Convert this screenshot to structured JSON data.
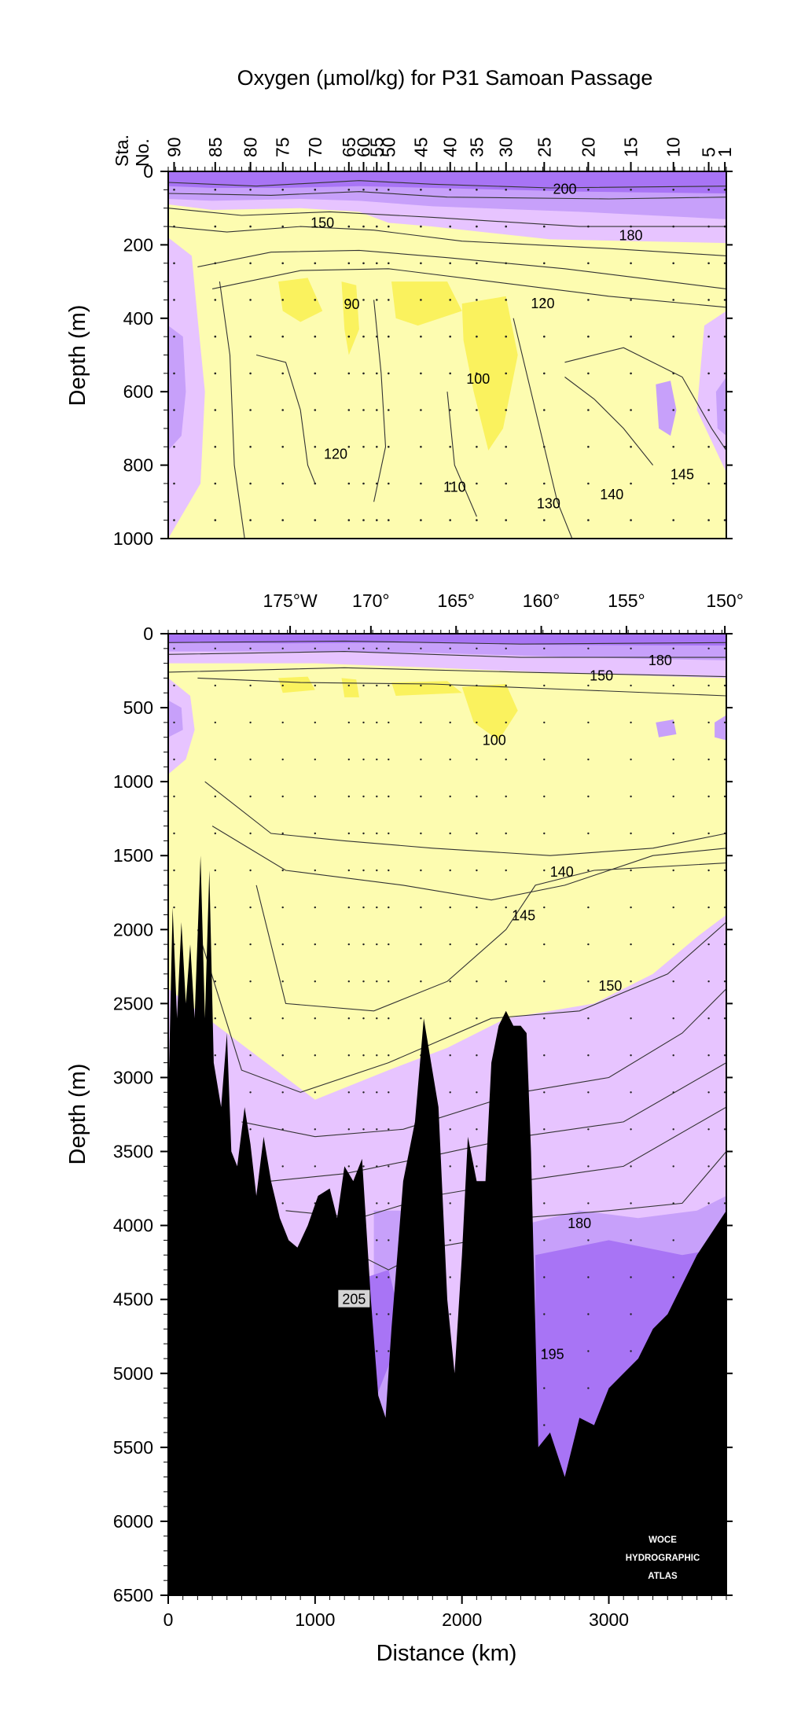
{
  "title": "Oxygen (µmol/kg) for P31 Samoan Passage",
  "watermark": [
    "WOCE",
    "HYDROGRAPHIC",
    "ATLAS"
  ],
  "colors": {
    "very_low": "#faf25e",
    "low": "#fdfcb0",
    "medium": "#e7c4ff",
    "high": "#c7a0fa",
    "very_high": "#a874f5",
    "bathymetry": "#000000"
  },
  "chart_data": [
    {
      "type": "heatmap",
      "name": "upper",
      "ylabel": "Depth (m)",
      "ylim": [
        1000,
        0
      ],
      "xlim": [
        0,
        3800
      ],
      "yticks": [
        0,
        200,
        400,
        600,
        800,
        1000
      ],
      "station_axis_label": "Sta. No.",
      "stations": [
        {
          "no": "90",
          "x": 40
        },
        {
          "no": "85",
          "x": 320
        },
        {
          "no": "80",
          "x": 560
        },
        {
          "no": "75",
          "x": 780
        },
        {
          "no": "70",
          "x": 1000
        },
        {
          "no": "65",
          "x": 1230
        },
        {
          "no": "60",
          "x": 1330
        },
        {
          "no": "55",
          "x": 1420
        },
        {
          "no": "50",
          "x": 1500
        },
        {
          "no": "45",
          "x": 1720
        },
        {
          "no": "40",
          "x": 1920
        },
        {
          "no": "35",
          "x": 2100
        },
        {
          "no": "30",
          "x": 2300
        },
        {
          "no": "25",
          "x": 2560
        },
        {
          "no": "20",
          "x": 2860
        },
        {
          "no": "15",
          "x": 3150
        },
        {
          "no": "10",
          "x": 3440
        },
        {
          "no": "5",
          "x": 3680
        },
        {
          "no": "1",
          "x": 3790
        }
      ],
      "contour_labels": [
        {
          "text": "200",
          "x": 2700,
          "y": 48
        },
        {
          "text": "150",
          "x": 1050,
          "y": 140
        },
        {
          "text": "180",
          "x": 3150,
          "y": 175
        },
        {
          "text": "90",
          "x": 1250,
          "y": 362
        },
        {
          "text": "120",
          "x": 2550,
          "y": 360
        },
        {
          "text": "100",
          "x": 2110,
          "y": 565
        },
        {
          "text": "120",
          "x": 1140,
          "y": 770
        },
        {
          "text": "110",
          "x": 1950,
          "y": 860
        },
        {
          "text": "130",
          "x": 2590,
          "y": 905
        },
        {
          "text": "140",
          "x": 3020,
          "y": 880
        },
        {
          "text": "145",
          "x": 3500,
          "y": 825
        }
      ]
    },
    {
      "type": "heatmap",
      "name": "full",
      "xlabel": "Distance (km)",
      "ylabel": "Depth (m)",
      "ylim": [
        6500,
        0
      ],
      "xlim": [
        0,
        3800
      ],
      "xticks": [
        0,
        1000,
        2000,
        3000
      ],
      "yticks": [
        0,
        500,
        1000,
        1500,
        2000,
        2500,
        3000,
        3500,
        4000,
        4500,
        5000,
        5500,
        6000,
        6500
      ],
      "longitudes": [
        {
          "label": "175°W",
          "x": 830
        },
        {
          "label": "170°",
          "x": 1380
        },
        {
          "label": "165°",
          "x": 1960
        },
        {
          "label": "160°",
          "x": 2540
        },
        {
          "label": "155°",
          "x": 3120
        },
        {
          "label": "150°",
          "x": 3790
        }
      ],
      "contour_labels": [
        {
          "text": "180",
          "x": 3350,
          "y": 180
        },
        {
          "text": "150",
          "x": 2950,
          "y": 285
        },
        {
          "text": "100",
          "x": 2220,
          "y": 720
        },
        {
          "text": "140",
          "x": 2680,
          "y": 1610
        },
        {
          "text": "145",
          "x": 2420,
          "y": 1905
        },
        {
          "text": "150",
          "x": 3010,
          "y": 2380
        },
        {
          "text": "180",
          "x": 2800,
          "y": 3985
        },
        {
          "text": "205",
          "x": 1265,
          "y": 4500
        },
        {
          "text": "195",
          "x": 2615,
          "y": 4870
        }
      ]
    }
  ]
}
